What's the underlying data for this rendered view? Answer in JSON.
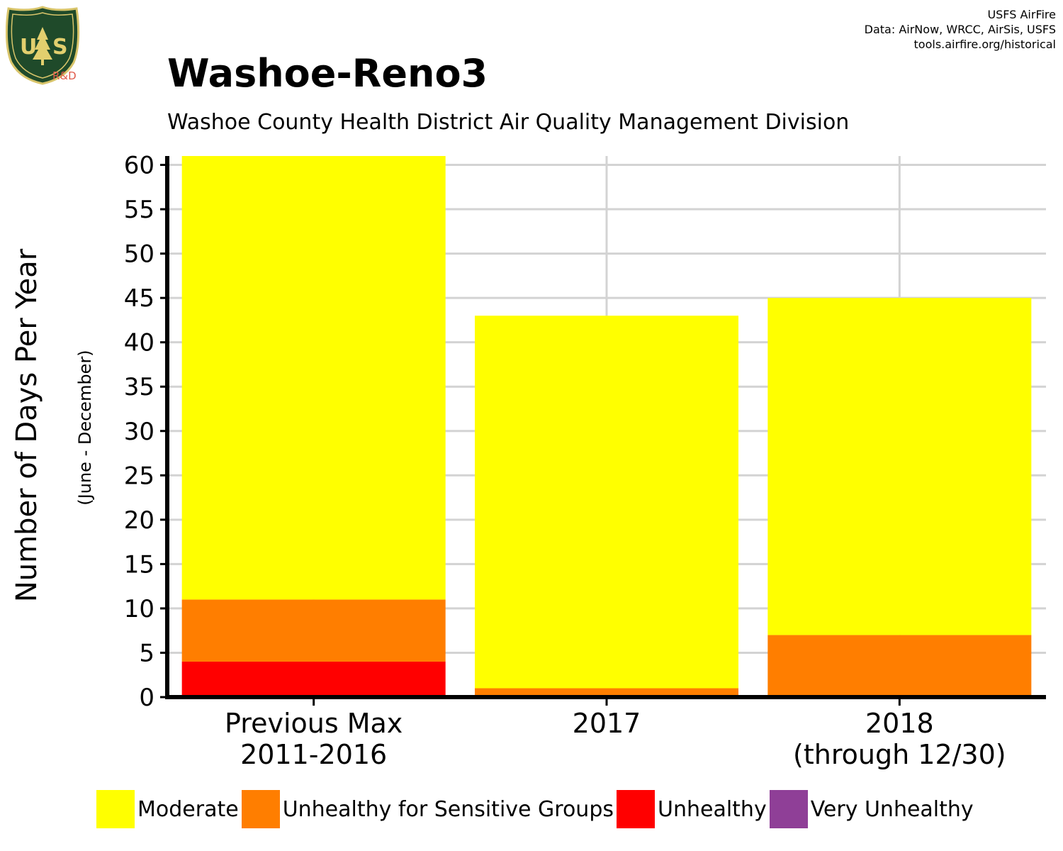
{
  "header": {
    "credits": [
      "USFS AirFire",
      "Data: AirNow, WRCC, AirSis, USFS",
      "tools.airfire.org/historical"
    ],
    "logo_text": "R&D"
  },
  "chart_data": {
    "type": "bar",
    "stacked": true,
    "title": "Washoe-Reno3",
    "subtitle": "Washoe County Health District Air Quality Management Division",
    "ylabel": "Number of Days Per Year",
    "ylabel_secondary": "(June - December)",
    "xlabel": "",
    "categories": [
      [
        "Previous Max",
        "2011-2016"
      ],
      [
        "2017"
      ],
      [
        "2018",
        "(through 12/30)"
      ]
    ],
    "ylim": [
      0,
      61
    ],
    "yticks": [
      0,
      5,
      10,
      15,
      20,
      25,
      30,
      35,
      40,
      45,
      50,
      55,
      60
    ],
    "grid": true,
    "legend_position": "bottom",
    "series": [
      {
        "name": "Unhealthy",
        "color": "#ff0000",
        "values": [
          4,
          0,
          0
        ]
      },
      {
        "name": "Unhealthy for Sensitive Groups",
        "color": "#ff7e00",
        "values": [
          7,
          1,
          7
        ]
      },
      {
        "name": "Moderate",
        "color": "#ffff00",
        "values": [
          50,
          42,
          38
        ]
      },
      {
        "name": "Very Unhealthy",
        "color": "#8f3f97",
        "values": [
          0,
          0,
          0
        ]
      }
    ],
    "legend": [
      {
        "name": "Moderate",
        "color": "#ffff00"
      },
      {
        "name": "Unhealthy for Sensitive Groups",
        "color": "#ff7e00"
      },
      {
        "name": "Unhealthy",
        "color": "#ff0000"
      },
      {
        "name": "Very Unhealthy",
        "color": "#8f3f97"
      }
    ]
  }
}
